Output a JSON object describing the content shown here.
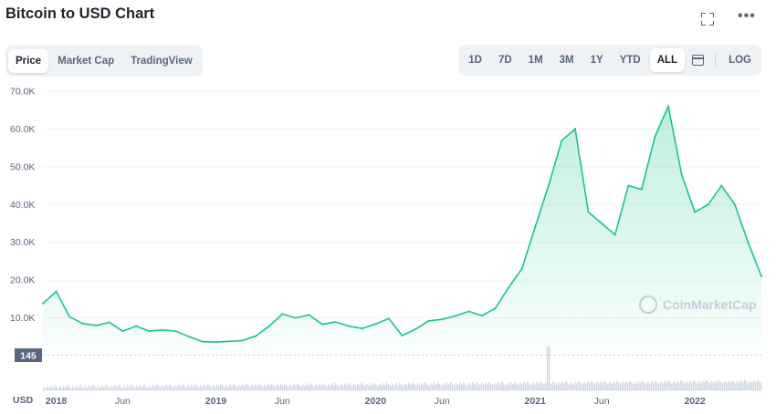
{
  "header": {
    "title": "Bitcoin to USD Chart"
  },
  "top_icons": [
    {
      "name": "fullscreen-icon"
    },
    {
      "name": "more-icon",
      "glyph": "•••"
    }
  ],
  "view_tabs": [
    {
      "label": "Price",
      "active": true
    },
    {
      "label": "Market Cap",
      "active": false
    },
    {
      "label": "TradingView",
      "active": false
    }
  ],
  "range_tabs": [
    {
      "label": "1D",
      "active": false
    },
    {
      "label": "7D",
      "active": false
    },
    {
      "label": "1M",
      "active": false
    },
    {
      "label": "3M",
      "active": false
    },
    {
      "label": "1Y",
      "active": false
    },
    {
      "label": "YTD",
      "active": false
    },
    {
      "label": "ALL",
      "active": true
    }
  ],
  "scale_toggle": {
    "label": "LOG"
  },
  "currency_label": "USD",
  "watermark": "CoinMarketCap",
  "colors": {
    "line": "#16c784",
    "area_top": "#16c784",
    "grid": "#eff2f5",
    "volume": "#cfd6e4",
    "current_badge": "#58667e"
  },
  "chart_data": {
    "type": "area",
    "series": [
      {
        "x": [
          "2017-12",
          "2018-01",
          "2018-02",
          "2018-03",
          "2018-04",
          "2018-05",
          "2018-06",
          "2018-07",
          "2018-08",
          "2018-09",
          "2018-10",
          "2018-11",
          "2018-12",
          "2019-01",
          "2019-02",
          "2019-03",
          "2019-04",
          "2019-05",
          "2019-06",
          "2019-07",
          "2019-08",
          "2019-09",
          "2019-10",
          "2019-11",
          "2019-12",
          "2020-01",
          "2020-02",
          "2020-03",
          "2020-04",
          "2020-05",
          "2020-06",
          "2020-07",
          "2020-08",
          "2020-09",
          "2020-10",
          "2020-11",
          "2020-12",
          "2021-01",
          "2021-02",
          "2021-03",
          "2021-04",
          "2021-05",
          "2021-06",
          "2021-07",
          "2021-08",
          "2021-09",
          "2021-10",
          "2021-11",
          "2021-12",
          "2022-01",
          "2022-02",
          "2022-03",
          "2022-04",
          "2022-05",
          "2022-06"
        ],
        "y": [
          13800,
          17000,
          10300,
          8500,
          8000,
          8800,
          6500,
          7800,
          6500,
          6800,
          6500,
          5000,
          3700,
          3600,
          3800,
          4000,
          5200,
          7800,
          11000,
          10000,
          10800,
          8300,
          8900,
          7800,
          7200,
          8400,
          9800,
          5300,
          7000,
          9200,
          9600,
          10500,
          11700,
          10600,
          12500,
          18000,
          23000,
          34000,
          45000,
          57000,
          60000,
          38000,
          35000,
          32000,
          45000,
          44000,
          58000,
          66000,
          48000,
          38000,
          40000,
          45000,
          40000,
          30000,
          21000
        ]
      }
    ],
    "title": "Bitcoin to USD Chart",
    "ylabel": "USD",
    "ylim": [
      0,
      70000
    ],
    "yticks": [
      10000,
      20000,
      30000,
      40000,
      50000,
      60000,
      70000
    ],
    "ytick_labels": [
      "10.0K",
      "20.0K",
      "30.0K",
      "40.0K",
      "50.0K",
      "60.0K",
      "70.0K"
    ],
    "xticks": [
      "2018-01",
      "2018-06",
      "2019-01",
      "2019-06",
      "2020-01",
      "2020-06",
      "2021-01",
      "2021-06",
      "2022-01"
    ],
    "xtick_labels": [
      "2018",
      "Jun",
      "2019",
      "Jun",
      "2020",
      "Jun",
      "2021",
      "Jun",
      "2022"
    ],
    "x_bold_ticks": [
      "2018",
      "2019",
      "2020",
      "2021",
      "2022"
    ],
    "x_range": [
      "2017-12",
      "2022-06"
    ],
    "badge_label": "145",
    "badge_value": 145,
    "volume_spike": "2021-02",
    "grid": true,
    "legend": "none"
  }
}
